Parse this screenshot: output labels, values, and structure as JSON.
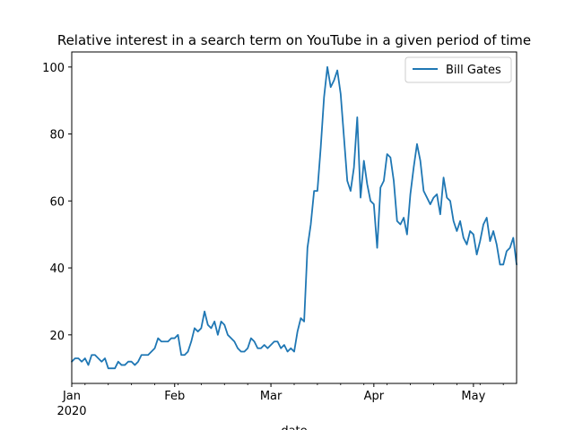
{
  "chart_data": {
    "type": "line",
    "title": "Relative interest in a search term on YouTube in a given period of time",
    "xlabel": "date",
    "ylabel": "",
    "x_start": "2020-01-01",
    "x_end": "2020-05-14",
    "ylim": [
      5.5,
      104.5
    ],
    "yticks": [
      20,
      40,
      60,
      80,
      100
    ],
    "xticks": [
      {
        "date": "2020-01-01",
        "label": "Jan",
        "sublabel": "2020"
      },
      {
        "date": "2020-02-01",
        "label": "Feb",
        "sublabel": ""
      },
      {
        "date": "2020-03-01",
        "label": "Mar",
        "sublabel": ""
      },
      {
        "date": "2020-04-01",
        "label": "Apr",
        "sublabel": ""
      },
      {
        "date": "2020-05-01",
        "label": "May",
        "sublabel": ""
      }
    ],
    "grid": false,
    "legend_position": "top-right",
    "series": [
      {
        "name": "Bill Gates",
        "color": "#1f77b4",
        "values": [
          12,
          13,
          13,
          12,
          13,
          11,
          14,
          14,
          13,
          12,
          13,
          10,
          10,
          10,
          12,
          11,
          11,
          12,
          12,
          11,
          12,
          14,
          14,
          14,
          15,
          16,
          19,
          18,
          18,
          18,
          19,
          19,
          20,
          14,
          14,
          15,
          18,
          22,
          21,
          22,
          27,
          23,
          22,
          24,
          20,
          24,
          23,
          20,
          19,
          18,
          16,
          15,
          15,
          16,
          19,
          18,
          16,
          16,
          17,
          16,
          17,
          18,
          18,
          16,
          17,
          15,
          16,
          15,
          21,
          25,
          24,
          46,
          53,
          63,
          63,
          76,
          91,
          100,
          94,
          96,
          99,
          92,
          79,
          66,
          63,
          70,
          85,
          61,
          72,
          65,
          60,
          59,
          46,
          64,
          66,
          74,
          73,
          66,
          54,
          53,
          55,
          50,
          62,
          70,
          77,
          72,
          63,
          61,
          59,
          61,
          62,
          56,
          67,
          61,
          60,
          54,
          51,
          54,
          49,
          47,
          51,
          50,
          44,
          48,
          53,
          55,
          48,
          51,
          47,
          41,
          41,
          45,
          46,
          49,
          41
        ]
      }
    ]
  }
}
